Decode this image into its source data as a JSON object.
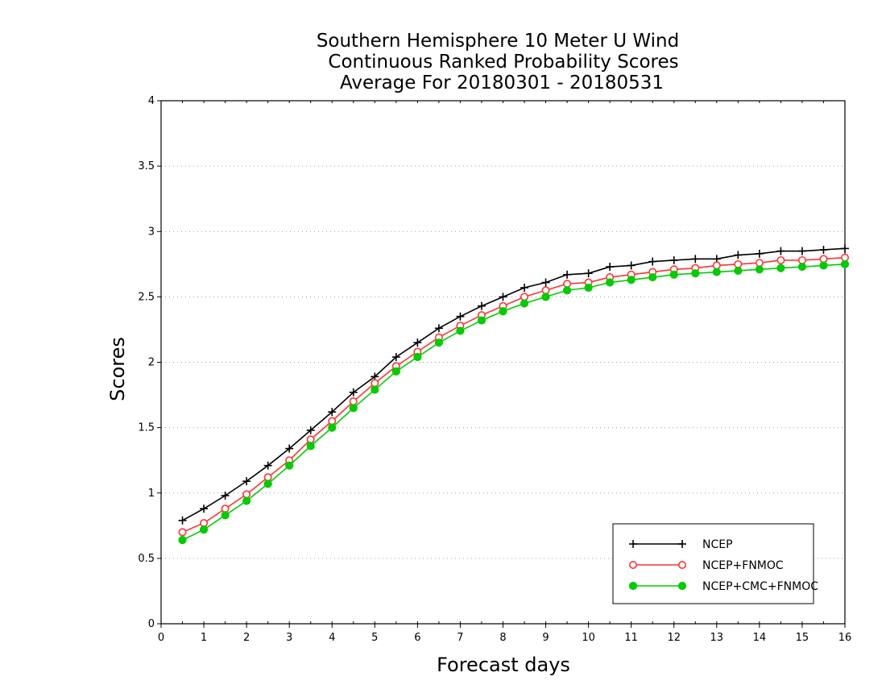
{
  "chart_data": {
    "type": "line",
    "title": [
      "Southern Hemisphere 10 Meter U Wind",
      "Continuous Ranked Probability Scores",
      "Average For 20180301 - 20180531"
    ],
    "xlabel": "Forecast days",
    "ylabel": "Scores",
    "xlim": [
      0,
      16
    ],
    "ylim": [
      0,
      4
    ],
    "xticks": [
      0,
      1,
      2,
      3,
      4,
      5,
      6,
      7,
      8,
      9,
      10,
      11,
      12,
      13,
      14,
      15,
      16
    ],
    "yticks": [
      0,
      0.5,
      1,
      1.5,
      2,
      2.5,
      3,
      3.5,
      4
    ],
    "xtick_labels": [
      "0",
      "1",
      "2",
      "3",
      "4",
      "5",
      "6",
      "7",
      "8",
      "9",
      "10",
      "11",
      "12",
      "13",
      "14",
      "15",
      "16"
    ],
    "ytick_labels": [
      "0",
      "0.5",
      "1",
      "1.5",
      "2",
      "2.5",
      "3",
      "3.5",
      "4"
    ],
    "grid": "horizontal dotted",
    "legend_position": "bottom-right",
    "x": [
      0.5,
      1,
      1.5,
      2,
      2.5,
      3,
      3.5,
      4,
      4.5,
      5,
      5.5,
      6,
      6.5,
      7,
      7.5,
      8,
      8.5,
      9,
      9.5,
      10,
      10.5,
      11,
      11.5,
      12,
      12.5,
      13,
      13.5,
      14,
      14.5,
      15,
      15.5,
      16
    ],
    "series": [
      {
        "name": "NCEP",
        "color": "#000000",
        "marker": "plus",
        "values": [
          0.79,
          0.88,
          0.98,
          1.09,
          1.21,
          1.34,
          1.48,
          1.62,
          1.77,
          1.89,
          2.04,
          2.15,
          2.26,
          2.35,
          2.43,
          2.5,
          2.57,
          2.61,
          2.67,
          2.68,
          2.73,
          2.74,
          2.77,
          2.78,
          2.79,
          2.79,
          2.82,
          2.83,
          2.85,
          2.85,
          2.86,
          2.87
        ]
      },
      {
        "name": "NCEP+FNMOC",
        "color": "#ff3333",
        "marker": "open-circle",
        "values": [
          0.7,
          0.77,
          0.88,
          0.99,
          1.12,
          1.25,
          1.41,
          1.55,
          1.7,
          1.84,
          1.97,
          2.08,
          2.19,
          2.28,
          2.36,
          2.43,
          2.5,
          2.55,
          2.6,
          2.61,
          2.65,
          2.67,
          2.69,
          2.71,
          2.72,
          2.74,
          2.75,
          2.76,
          2.78,
          2.78,
          2.79,
          2.8
        ]
      },
      {
        "name": "NCEP+CMC+FNMOC",
        "color": "#00cc00",
        "marker": "filled-circle",
        "values": [
          0.64,
          0.72,
          0.83,
          0.94,
          1.07,
          1.21,
          1.36,
          1.5,
          1.65,
          1.79,
          1.93,
          2.04,
          2.15,
          2.24,
          2.32,
          2.39,
          2.45,
          2.5,
          2.55,
          2.57,
          2.61,
          2.63,
          2.65,
          2.67,
          2.68,
          2.69,
          2.7,
          2.71,
          2.72,
          2.73,
          2.74,
          2.75
        ]
      }
    ]
  }
}
